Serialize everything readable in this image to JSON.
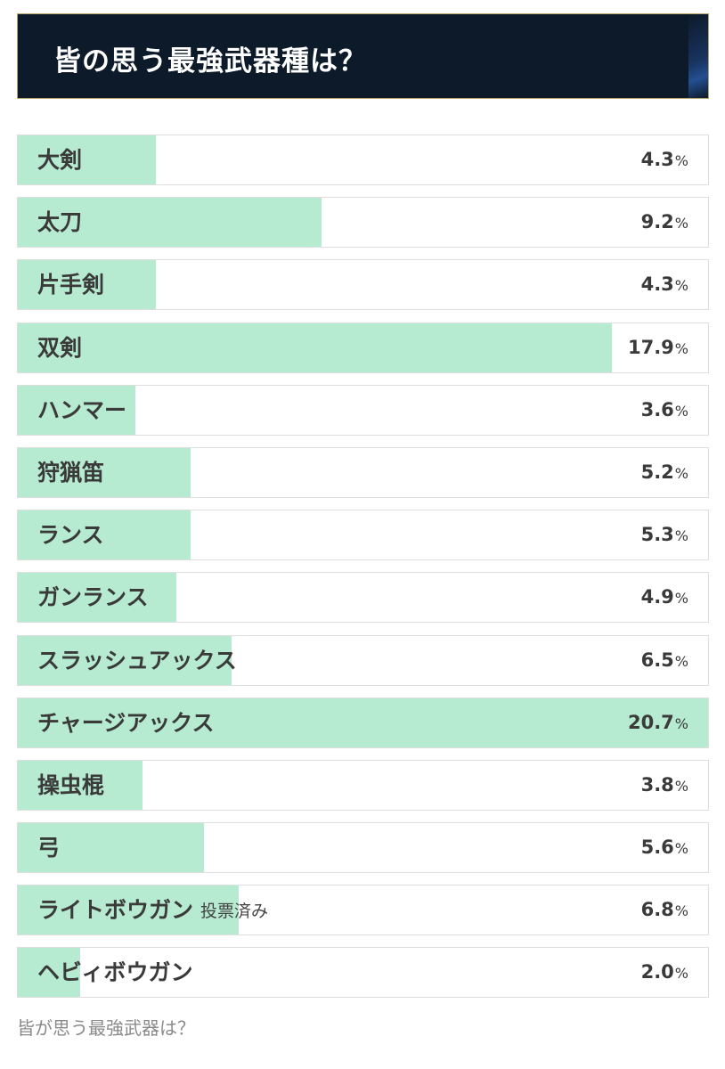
{
  "header": {
    "title": "皆の思う最強武器種は？"
  },
  "poll": {
    "fill_color": "#b6ead1",
    "options": [
      {
        "label": "大剣",
        "value": "4.3",
        "unit": "%",
        "fill_fraction": 0.2,
        "voted_badge": ""
      },
      {
        "label": "太刀",
        "value": "9.2",
        "unit": "%",
        "fill_fraction": 0.44,
        "voted_badge": ""
      },
      {
        "label": "片手剣",
        "value": "4.3",
        "unit": "%",
        "fill_fraction": 0.2,
        "voted_badge": ""
      },
      {
        "label": "双剣",
        "value": "17.9",
        "unit": "%",
        "fill_fraction": 0.86,
        "voted_badge": ""
      },
      {
        "label": "ハンマー",
        "value": "3.6",
        "unit": "%",
        "fill_fraction": 0.17,
        "voted_badge": ""
      },
      {
        "label": "狩猟笛",
        "value": "5.2",
        "unit": "%",
        "fill_fraction": 0.25,
        "voted_badge": ""
      },
      {
        "label": "ランス",
        "value": "5.3",
        "unit": "%",
        "fill_fraction": 0.25,
        "voted_badge": ""
      },
      {
        "label": "ガンランス",
        "value": "4.9",
        "unit": "%",
        "fill_fraction": 0.23,
        "voted_badge": ""
      },
      {
        "label": "スラッシュアックス",
        "value": "6.5",
        "unit": "%",
        "fill_fraction": 0.31,
        "voted_badge": ""
      },
      {
        "label": "チャージアックス",
        "value": "20.7",
        "unit": "%",
        "fill_fraction": 1.0,
        "voted_badge": ""
      },
      {
        "label": "操虫棍",
        "value": "3.8",
        "unit": "%",
        "fill_fraction": 0.18,
        "voted_badge": ""
      },
      {
        "label": "弓",
        "value": "5.6",
        "unit": "%",
        "fill_fraction": 0.27,
        "voted_badge": ""
      },
      {
        "label": "ライトボウガン",
        "value": "6.8",
        "unit": "%",
        "fill_fraction": 0.32,
        "voted_badge": "投票済み"
      },
      {
        "label": "ヘビィボウガン",
        "value": "2.0",
        "unit": "%",
        "fill_fraction": 0.09,
        "voted_badge": ""
      }
    ]
  },
  "caption": "皆が思う最強武器は？"
}
